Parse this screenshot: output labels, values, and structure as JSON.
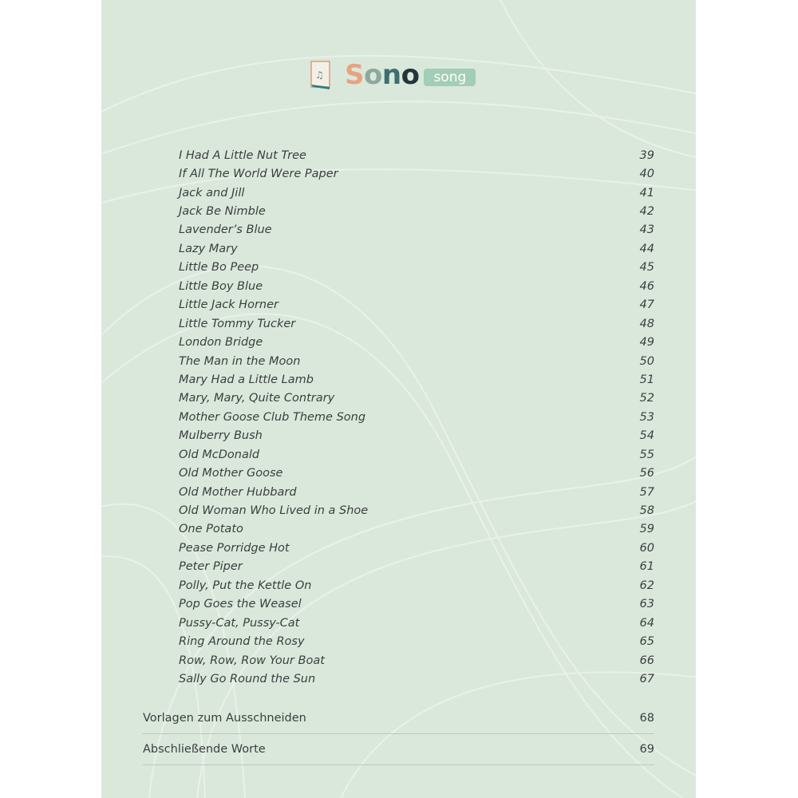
{
  "logo": {
    "word": "Sono",
    "badge": "song",
    "colors": [
      "#e9a27f",
      "#8fa79f",
      "#3f6e70",
      "#24363a"
    ]
  },
  "entries": [
    {
      "title": "I Had A Little Nut Tree",
      "page": "39"
    },
    {
      "title": "If All The World Were Paper",
      "page": "40"
    },
    {
      "title": "Jack and Jill",
      "page": "41"
    },
    {
      "title": "Jack Be Nimble",
      "page": "42"
    },
    {
      "title": "Lavender’s Blue",
      "page": "43"
    },
    {
      "title": "Lazy Mary",
      "page": "44"
    },
    {
      "title": "Little Bo Peep",
      "page": "45"
    },
    {
      "title": "Little Boy Blue",
      "page": "46"
    },
    {
      "title": "Little Jack Horner",
      "page": "47"
    },
    {
      "title": "Little Tommy Tucker",
      "page": "48"
    },
    {
      "title": "London Bridge",
      "page": "49"
    },
    {
      "title": "The Man in the Moon",
      "page": "50"
    },
    {
      "title": "Mary Had a Little Lamb",
      "page": "51"
    },
    {
      "title": "Mary, Mary, Quite Contrary",
      "page": "52"
    },
    {
      "title": "Mother Goose Club Theme Song",
      "page": "53"
    },
    {
      "title": "Mulberry Bush",
      "page": "54"
    },
    {
      "title": "Old McDonald",
      "page": "55"
    },
    {
      "title": "Old Mother Goose",
      "page": "56"
    },
    {
      "title": "Old Mother Hubbard",
      "page": "57"
    },
    {
      "title": "Old Woman Who Lived in a Shoe",
      "page": "58"
    },
    {
      "title": "One Potato",
      "page": "59"
    },
    {
      "title": "Pease Porridge Hot",
      "page": "60"
    },
    {
      "title": "Peter Piper",
      "page": "61"
    },
    {
      "title": "Polly, Put the Kettle On",
      "page": "62"
    },
    {
      "title": "Pop Goes the Weasel",
      "page": "63"
    },
    {
      "title": "Pussy-Cat, Pussy-Cat",
      "page": "64"
    },
    {
      "title": "Ring Around the Rosy",
      "page": "65"
    },
    {
      "title": "Row, Row, Row Your Boat",
      "page": "66"
    },
    {
      "title": "Sally Go Round the Sun",
      "page": "67"
    }
  ],
  "sections": [
    {
      "title": "Vorlagen zum Ausschneiden",
      "page": "68"
    },
    {
      "title": "Abschließende Worte",
      "page": "69"
    }
  ]
}
